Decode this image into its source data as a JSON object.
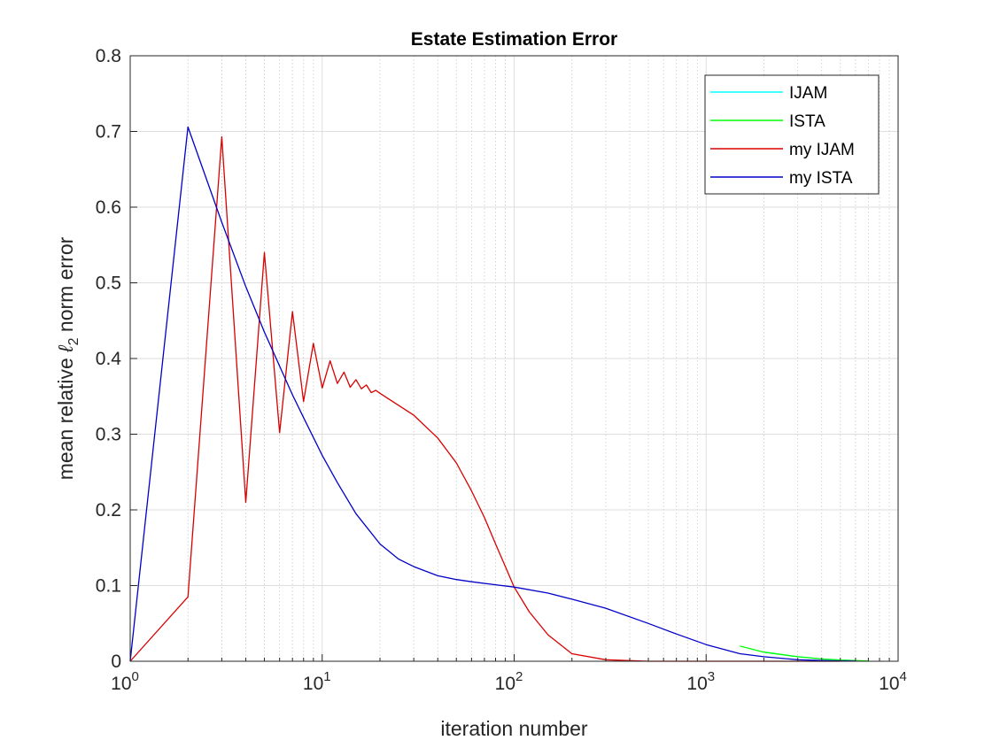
{
  "chart_data": {
    "type": "line",
    "title": "Estate Estimation Error",
    "xlabel": "iteration number",
    "ylabel": {
      "prefix": "mean relative ",
      "symbol": "ℓ",
      "subscript": "2",
      "suffix": " norm error"
    },
    "xscale": "log",
    "xlim": [
      1,
      10000
    ],
    "ylim": [
      0,
      0.8
    ],
    "grid": true,
    "minor_grid_x": true,
    "legend_position": "top-right",
    "x_ticks": [
      {
        "value": 1,
        "base": "10",
        "exp": "0"
      },
      {
        "value": 10,
        "base": "10",
        "exp": "1"
      },
      {
        "value": 100,
        "base": "10",
        "exp": "2"
      },
      {
        "value": 1000,
        "base": "10",
        "exp": "3"
      },
      {
        "value": 10000,
        "base": "10",
        "exp": "4"
      }
    ],
    "y_ticks": [
      {
        "value": 0,
        "label": "0"
      },
      {
        "value": 0.1,
        "label": "0.1"
      },
      {
        "value": 0.2,
        "label": "0.2"
      },
      {
        "value": 0.3,
        "label": "0.3"
      },
      {
        "value": 0.4,
        "label": "0.4"
      },
      {
        "value": 0.5,
        "label": "0.5"
      },
      {
        "value": 0.6,
        "label": "0.6"
      },
      {
        "value": 0.7,
        "label": "0.7"
      },
      {
        "value": 0.8,
        "label": "0.8"
      }
    ],
    "series": [
      {
        "name": "IJAM",
        "color": "#00ffff",
        "x": [
          2000,
          3000,
          4000,
          5000,
          6000
        ],
        "y": [
          0.012,
          0.006,
          0.003,
          0.0015,
          0.0008
        ]
      },
      {
        "name": "ISTA",
        "color": "#00ff00",
        "x": [
          1500,
          2000,
          3000,
          4000,
          5000,
          6000,
          7000
        ],
        "y": [
          0.02,
          0.012,
          0.006,
          0.003,
          0.0015,
          0.0008,
          0.0005
        ]
      },
      {
        "name": "my IJAM",
        "color": "#d90000",
        "x": [
          1,
          2,
          3,
          4,
          5,
          6,
          7,
          8,
          9,
          10,
          11,
          12,
          13,
          14,
          15,
          16,
          17,
          18,
          19,
          20,
          30,
          40,
          50,
          60,
          70,
          80,
          90,
          100,
          120,
          150,
          200,
          300,
          500,
          1000,
          2000,
          5000
        ],
        "y": [
          0,
          0.085,
          0.693,
          0.21,
          0.54,
          0.302,
          0.462,
          0.343,
          0.42,
          0.361,
          0.397,
          0.367,
          0.382,
          0.362,
          0.372,
          0.36,
          0.365,
          0.355,
          0.358,
          0.354,
          0.325,
          0.295,
          0.262,
          0.225,
          0.19,
          0.155,
          0.125,
          0.098,
          0.065,
          0.035,
          0.01,
          0.002,
          0,
          0,
          0,
          0
        ]
      },
      {
        "name": "my ISTA",
        "color": "#0000c8",
        "x": [
          1,
          2,
          3,
          4,
          5,
          6,
          7,
          8,
          10,
          12,
          15,
          20,
          25,
          30,
          40,
          50,
          60,
          80,
          100,
          150,
          200,
          300,
          500,
          700,
          1000,
          1500,
          2000,
          3000,
          4000,
          5000,
          6000
        ],
        "y": [
          0,
          0.706,
          0.58,
          0.495,
          0.435,
          0.39,
          0.352,
          0.322,
          0.272,
          0.236,
          0.195,
          0.155,
          0.135,
          0.125,
          0.113,
          0.108,
          0.105,
          0.101,
          0.098,
          0.09,
          0.082,
          0.07,
          0.05,
          0.036,
          0.022,
          0.01,
          0.006,
          0.002,
          0.001,
          0.0005,
          0.0002
        ]
      }
    ]
  }
}
